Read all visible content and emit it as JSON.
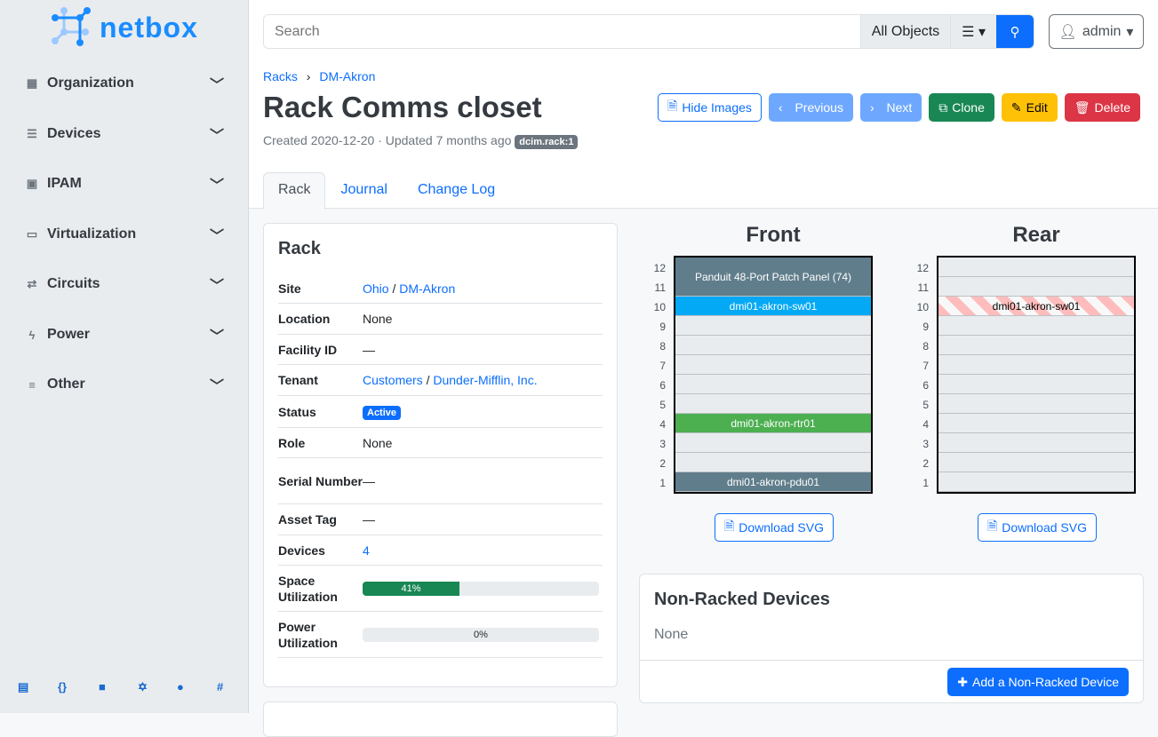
{
  "brand": "netbox",
  "sidebar": {
    "items": [
      {
        "label": "Organization",
        "icon": "building-icon"
      },
      {
        "label": "Devices",
        "icon": "server-icon"
      },
      {
        "label": "IPAM",
        "icon": "ip-icon"
      },
      {
        "label": "Virtualization",
        "icon": "monitor-icon"
      },
      {
        "label": "Circuits",
        "icon": "circuit-icon"
      },
      {
        "label": "Power",
        "icon": "lightning-icon"
      },
      {
        "label": "Other",
        "icon": "other-icon"
      }
    ],
    "footer": [
      {
        "icon": "book-icon",
        "g": "▤"
      },
      {
        "icon": "api-icon",
        "g": "{}"
      },
      {
        "icon": "docs-icon",
        "g": "■"
      },
      {
        "icon": "graphql-icon",
        "g": "✡"
      },
      {
        "icon": "github-icon",
        "g": "●"
      },
      {
        "icon": "slack-icon",
        "g": "#"
      }
    ]
  },
  "search": {
    "placeholder": "Search",
    "scope": "All Objects"
  },
  "user": {
    "name": "admin"
  },
  "breadcrumb": [
    "Racks",
    "DM-Akron"
  ],
  "title": "Rack Comms closet",
  "meta": {
    "text": "Created 2020-12-20 · Updated 7 months ago",
    "tag": "dcim.rack:1"
  },
  "actions": {
    "hide_images": "Hide Images",
    "previous": "Previous",
    "next": "Next",
    "clone": "Clone",
    "edit": "Edit",
    "delete": "Delete"
  },
  "tabs": [
    "Rack",
    "Journal",
    "Change Log"
  ],
  "rack_card": {
    "title": "Rack",
    "site": [
      "Ohio",
      "DM-Akron"
    ],
    "location": "None",
    "facility_id": "—",
    "tenant": [
      "Customers",
      "Dunder-Mifflin, Inc."
    ],
    "status": "Active",
    "role": "None",
    "serial": "—",
    "asset_tag": "—",
    "devices": "4",
    "space_util": 41,
    "space_util_label": "41%",
    "power_util": 0,
    "power_util_label": "0%",
    "labels": {
      "site": "Site",
      "location": "Location",
      "facility": "Facility ID",
      "tenant": "Tenant",
      "status": "Status",
      "role": "Role",
      "serial": "Serial Number",
      "asset": "Asset Tag",
      "devices": "Devices",
      "space": "Space Utilization",
      "power": "Power Utilization"
    }
  },
  "elevations": {
    "front_title": "Front",
    "rear_title": "Rear",
    "units": [
      12,
      11,
      10,
      9,
      8,
      7,
      6,
      5,
      4,
      3,
      2,
      1
    ],
    "front_devices": [
      {
        "name": "Panduit 48-Port Patch Panel (74)",
        "top": 12,
        "height": 2,
        "color": "#607d8b"
      },
      {
        "name": "dmi01-akron-sw01",
        "top": 10,
        "height": 1,
        "color": "#03a9f4"
      },
      {
        "name": "dmi01-akron-rtr01",
        "top": 4,
        "height": 1,
        "color": "#4caf50"
      },
      {
        "name": "dmi01-akron-pdu01",
        "top": 1,
        "height": 1,
        "color": "#607d8b"
      }
    ],
    "rear_devices": [
      {
        "name": "dmi01-akron-sw01",
        "top": 10,
        "height": 1
      }
    ],
    "download": "Download SVG"
  },
  "non_racked": {
    "title": "Non-Racked Devices",
    "value": "None",
    "add": "Add a Non-Racked Device"
  }
}
